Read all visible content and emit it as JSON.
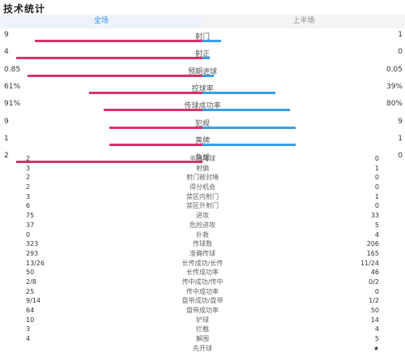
{
  "title": "技术统计",
  "tabs": [
    {
      "label": "全场",
      "active": true
    },
    {
      "label": "上半场",
      "active": false
    }
  ],
  "colors": {
    "home": "#d6336c",
    "away": "#3a9ee6",
    "accent": "#2f8df0"
  },
  "bar_stats": [
    {
      "label": "射门",
      "home": "9",
      "away": "1",
      "home_frac": 0.9,
      "away_frac": 0.1
    },
    {
      "label": "射正",
      "home": "4",
      "away": "0",
      "home_frac": 1.0,
      "away_frac": 0.04
    },
    {
      "label": "预期进球",
      "home": "0.85",
      "away": "0.05",
      "home_frac": 0.94,
      "away_frac": 0.06
    },
    {
      "label": "控球率",
      "home": "61%",
      "away": "39%",
      "home_frac": 0.61,
      "away_frac": 0.39
    },
    {
      "label": "传球成功率",
      "home": "91%",
      "away": "80%",
      "home_frac": 0.53,
      "away_frac": 0.47
    },
    {
      "label": "犯规",
      "home": "9",
      "away": "9",
      "home_frac": 0.5,
      "away_frac": 0.5
    },
    {
      "label": "黄牌",
      "home": "1",
      "away": "1",
      "home_frac": 0.5,
      "away_frac": 0.5
    },
    {
      "label": "角球",
      "home": "2",
      "away": "0",
      "home_frac": 1.0,
      "away_frac": 0.0
    }
  ],
  "table_stats": [
    {
      "label": "半场角球",
      "home": "2",
      "away": "0"
    },
    {
      "label": "射偏",
      "home": "3",
      "away": "1"
    },
    {
      "label": "射门被封堵",
      "home": "2",
      "away": "0"
    },
    {
      "label": "得分机会",
      "home": "2",
      "away": "0"
    },
    {
      "label": "禁区内射门",
      "home": "3",
      "away": "1"
    },
    {
      "label": "禁区外射门",
      "home": "6",
      "away": "0"
    },
    {
      "label": "进攻",
      "home": "75",
      "away": "33"
    },
    {
      "label": "危险进攻",
      "home": "37",
      "away": "5"
    },
    {
      "label": "扑救",
      "home": "0",
      "away": "4"
    },
    {
      "label": "传球数",
      "home": "323",
      "away": "206"
    },
    {
      "label": "准确传球",
      "home": "293",
      "away": "165"
    },
    {
      "label": "长传成功/长传",
      "home": "13/26",
      "away": "11/24"
    },
    {
      "label": "长传成功率",
      "home": "50",
      "away": "46"
    },
    {
      "label": "传中成功/传中",
      "home": "2/8",
      "away": "0/2"
    },
    {
      "label": "传中成功率",
      "home": "25",
      "away": "0"
    },
    {
      "label": "盘带成功/盘带",
      "home": "9/14",
      "away": "1/2"
    },
    {
      "label": "盘带成功率",
      "home": "64",
      "away": "50"
    },
    {
      "label": "铲球",
      "home": "10",
      "away": "14"
    },
    {
      "label": "拦截",
      "home": "3",
      "away": "4"
    },
    {
      "label": "解围",
      "home": "4",
      "away": "5"
    },
    {
      "label": "先开球",
      "home": "",
      "away": "★"
    }
  ]
}
